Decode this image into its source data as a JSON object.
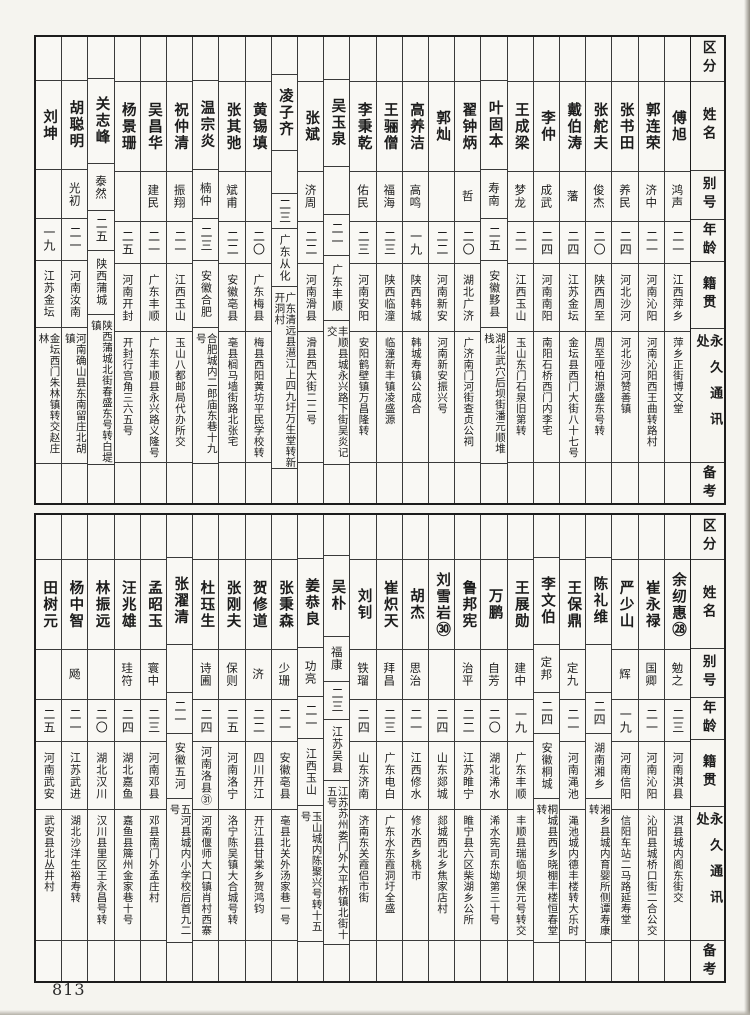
{
  "page": {
    "number": "813"
  },
  "colors": {
    "ink": "#1c1c1c",
    "paper": "#f5f4ef",
    "grid": "#3a3a3a"
  },
  "header_labels": {
    "category": "区分",
    "name": "姓名",
    "alias": "别号",
    "age": "年龄",
    "origin": "籍贯",
    "address": "永久通讯处",
    "remarks": "备考"
  },
  "tables": {
    "top": {
      "people": [
        {
          "name": "傅旭",
          "alias": "鸿声",
          "age": "二一",
          "origin": "江西萍乡",
          "address": "萍乡正街博文堂",
          "remarks": ""
        },
        {
          "name": "郭连荣",
          "alias": "济中",
          "age": "二一",
          "origin": "河南沁阳",
          "address": "河南沁阳西王曲转路村",
          "remarks": ""
        },
        {
          "name": "张书田",
          "alias": "养民",
          "age": "二四",
          "origin": "河北沙河",
          "address": "河北沙河赞善镇",
          "remarks": ""
        },
        {
          "name": "张舵夫",
          "alias": "俊杰",
          "age": "二〇",
          "origin": "陕西周至",
          "address": "周至哑柏源盛东号转",
          "remarks": ""
        },
        {
          "name": "戴伯涛",
          "alias": "藩",
          "age": "二四",
          "origin": "江苏金坛",
          "address": "金坛县西门大街八十七号",
          "remarks": ""
        },
        {
          "name": "李仲",
          "alias": "成武",
          "age": "二四",
          "origin": "河南南阳",
          "address": "南阳石桥西门内李宅",
          "remarks": ""
        },
        {
          "name": "王成梁",
          "alias": "梦龙",
          "age": "二一",
          "origin": "江西玉山",
          "address": "玉山东门石泉旧第转",
          "remarks": ""
        },
        {
          "name": "叶固本",
          "alias": "寿南",
          "age": "二五",
          "origin": "安徽黟县",
          "address": "湖北武穴后坝街潘元顺堆栈",
          "remarks": ""
        },
        {
          "name": "翟钟炳",
          "alias": "哲",
          "age": "二〇",
          "origin": "湖北广济",
          "address": "广济南门河街查贞公祠",
          "remarks": ""
        },
        {
          "name": "郭灿",
          "alias": "",
          "age": "二二",
          "origin": "河南新安",
          "address": "河南新安振兴号",
          "remarks": ""
        },
        {
          "name": "高养洁",
          "alias": "高鸣",
          "age": "一九",
          "origin": "陕西韩城",
          "address": "韩城寿镇公成合",
          "remarks": ""
        },
        {
          "name": "王骊僧",
          "alias": "福海",
          "age": "二三",
          "origin": "陕西临潼",
          "address": "临潼新丰镇凌盛源",
          "remarks": ""
        },
        {
          "name": "李秉乾",
          "alias": "佑民",
          "age": "二三",
          "origin": "河南安阳",
          "address": "安阳鹤壁镇万昌隆转",
          "remarks": ""
        },
        {
          "name": "吴玉泉",
          "alias": "",
          "age": "二一",
          "origin": "广东丰顺",
          "address": "丰顺县城永兴路下街吴炎记交",
          "remarks": ""
        },
        {
          "name": "张斌",
          "alias": "济周",
          "age": "二二",
          "origin": "河南滑县",
          "address": "滑县西大街二二号",
          "remarks": ""
        },
        {
          "name": "凌子齐",
          "alias": "",
          "age": "二三",
          "origin": "广东从化",
          "address": "广东清远县潖江上四九圩万生堂转新开洞村",
          "remarks": ""
        },
        {
          "name": "黄锡填",
          "alias": "",
          "age": "二〇",
          "origin": "广东梅县",
          "address": "梅县西阳黄坊平民学校转",
          "remarks": ""
        },
        {
          "name": "张其弛",
          "alias": "斌甫",
          "age": "二二",
          "origin": "安徽亳县",
          "address": "亳县榈马墙街路北张宅",
          "remarks": ""
        },
        {
          "name": "温宗炎",
          "alias": "楠仲",
          "age": "二三",
          "origin": "安徽合肥",
          "address": "合肥城内二郎庙东巷十九号",
          "remarks": ""
        },
        {
          "name": "祝仲清",
          "alias": "振翔",
          "age": "二一",
          "origin": "江西玉山",
          "address": "玉山八都邮局代办所交",
          "remarks": ""
        },
        {
          "name": "吴昌华",
          "alias": "建民",
          "age": "二一",
          "origin": "广东丰顺",
          "address": "广东丰顺县永兴路义隆号",
          "remarks": ""
        },
        {
          "name": "杨景珊",
          "alias": "",
          "age": "二五",
          "origin": "河南开封",
          "address": "开封行宫角三六五号",
          "remarks": ""
        },
        {
          "name": "关志峰",
          "alias": "泰然",
          "age": "二五",
          "origin": "陕西蒲城",
          "address": "陕西蒲城北街春盛东号转白堤镇",
          "remarks": ""
        },
        {
          "name": "胡聪明",
          "alias": "光初",
          "age": "二一",
          "origin": "河南汝南",
          "address": "河南确山县东南留庄北胡镇",
          "remarks": ""
        },
        {
          "name": "刘坤",
          "alias": "",
          "age": "一九",
          "origin": "江苏金坛",
          "address": "金坛西门朱林镇转交赵庄林",
          "remarks": ""
        }
      ]
    },
    "bottom": {
      "people": [
        {
          "name": "余纫惠㉘",
          "alias": "勉之",
          "age": "二三",
          "origin": "河南淇县",
          "address": "淇县城内阁东街交",
          "remarks": ""
        },
        {
          "name": "崔永禄",
          "alias": "国卿",
          "age": "二一",
          "origin": "河南沁阳",
          "address": "沁阳县城桥口街二合公交",
          "remarks": ""
        },
        {
          "name": "严少山",
          "alias": "辉",
          "age": "一九",
          "origin": "河南信阳",
          "address": "信阳车站二马路延寿堂",
          "remarks": ""
        },
        {
          "name": "陈礼维",
          "alias": "",
          "age": "二四",
          "origin": "湖南湘乡",
          "address": "湘乡县城内育婴所侧谭寿康转",
          "remarks": ""
        },
        {
          "name": "王保鼎",
          "alias": "定九",
          "age": "二一",
          "origin": "河南渑池",
          "address": "渑池城内德丰楼转大乐时",
          "remarks": ""
        },
        {
          "name": "李文伯",
          "alias": "定邦",
          "age": "二四",
          "origin": "安徽桐城",
          "address": "桐城县西乡晓棚丰楼恒春堂转",
          "remarks": ""
        },
        {
          "name": "王展勋",
          "alias": "建中",
          "age": "一九",
          "origin": "广东丰顺",
          "address": "丰顺县瑞临坝保元号转交",
          "remarks": ""
        },
        {
          "name": "万鹏",
          "alias": "自芳",
          "age": "二〇",
          "origin": "湖北浠水",
          "address": "浠水宪司东坳第三十号",
          "remarks": ""
        },
        {
          "name": "鲁邦宪",
          "alias": "治平",
          "age": "二二",
          "origin": "江苏睢宁",
          "address": "睢宁县六区柴湖乡公所",
          "remarks": ""
        },
        {
          "name": "刘雪岩㉚",
          "alias": "",
          "age": "二四",
          "origin": "山东郯城",
          "address": "郯城西北乡焦家店村",
          "remarks": ""
        },
        {
          "name": "胡杰",
          "alias": "思治",
          "age": "二一",
          "origin": "江西修水",
          "address": "修水西乡桃市",
          "remarks": ""
        },
        {
          "name": "崔炽天",
          "alias": "拜昌",
          "age": "二三",
          "origin": "广东电白",
          "address": "广东水东霞洞圩全盛",
          "remarks": ""
        },
        {
          "name": "刘钊",
          "alias": "铁瑠",
          "age": "二四",
          "origin": "山东济南",
          "address": "济南东关霞侣市街",
          "remarks": ""
        },
        {
          "name": "吴朴",
          "alias": "福康",
          "age": "二三",
          "origin": "江苏吴县",
          "address": "江苏苏州娄门外大平桥镇北街十五号",
          "remarks": ""
        },
        {
          "name": "姜恭良",
          "alias": "功亮",
          "age": "二一",
          "origin": "江西玉山",
          "address": "玉山城内陈聚兴号转十五号",
          "remarks": ""
        },
        {
          "name": "张秉森",
          "alias": "少珊",
          "age": "二一",
          "origin": "安徽亳县",
          "address": "亳县北关外汤家巷一号",
          "remarks": ""
        },
        {
          "name": "贺修道",
          "alias": "济",
          "age": "二二",
          "origin": "四川开江",
          "address": "开江县甘棠乡贺鸿钧",
          "remarks": ""
        },
        {
          "name": "张刚夫",
          "alias": "保则",
          "age": "二五",
          "origin": "河南洛宁",
          "address": "洛宁陈吴镇大合城号转",
          "remarks": ""
        },
        {
          "name": "杜珏生",
          "alias": "诗圃",
          "age": "二四",
          "origin": "河南洛县㉛",
          "address": "河南偃师大口镇肖村西寨",
          "remarks": ""
        },
        {
          "name": "张濯清",
          "alias": "",
          "age": "二一",
          "origin": "安徽五河",
          "address": "五河县城内小学校后首九二号",
          "remarks": ""
        },
        {
          "name": "孟昭玉",
          "alias": "寰中",
          "age": "二三",
          "origin": "河南邓县",
          "address": "邓县南门外孟庄村",
          "remarks": ""
        },
        {
          "name": "汪兆雄",
          "alias": "珪符",
          "age": "二四",
          "origin": "湖北嘉鱼",
          "address": "嘉鱼县簰州金家巷十号",
          "remarks": ""
        },
        {
          "name": "林振远",
          "alias": "",
          "age": "二〇",
          "origin": "湖北汉川",
          "address": "汉川县里区王永昌号转",
          "remarks": ""
        },
        {
          "name": "杨中智",
          "alias": "飏",
          "age": "二一",
          "origin": "江苏武进",
          "address": "湖北沙洋生裕寿转",
          "remarks": ""
        },
        {
          "name": "田树元",
          "alias": "",
          "age": "二五",
          "origin": "河南武安",
          "address": "武安县北丛井村",
          "remarks": ""
        }
      ]
    }
  }
}
